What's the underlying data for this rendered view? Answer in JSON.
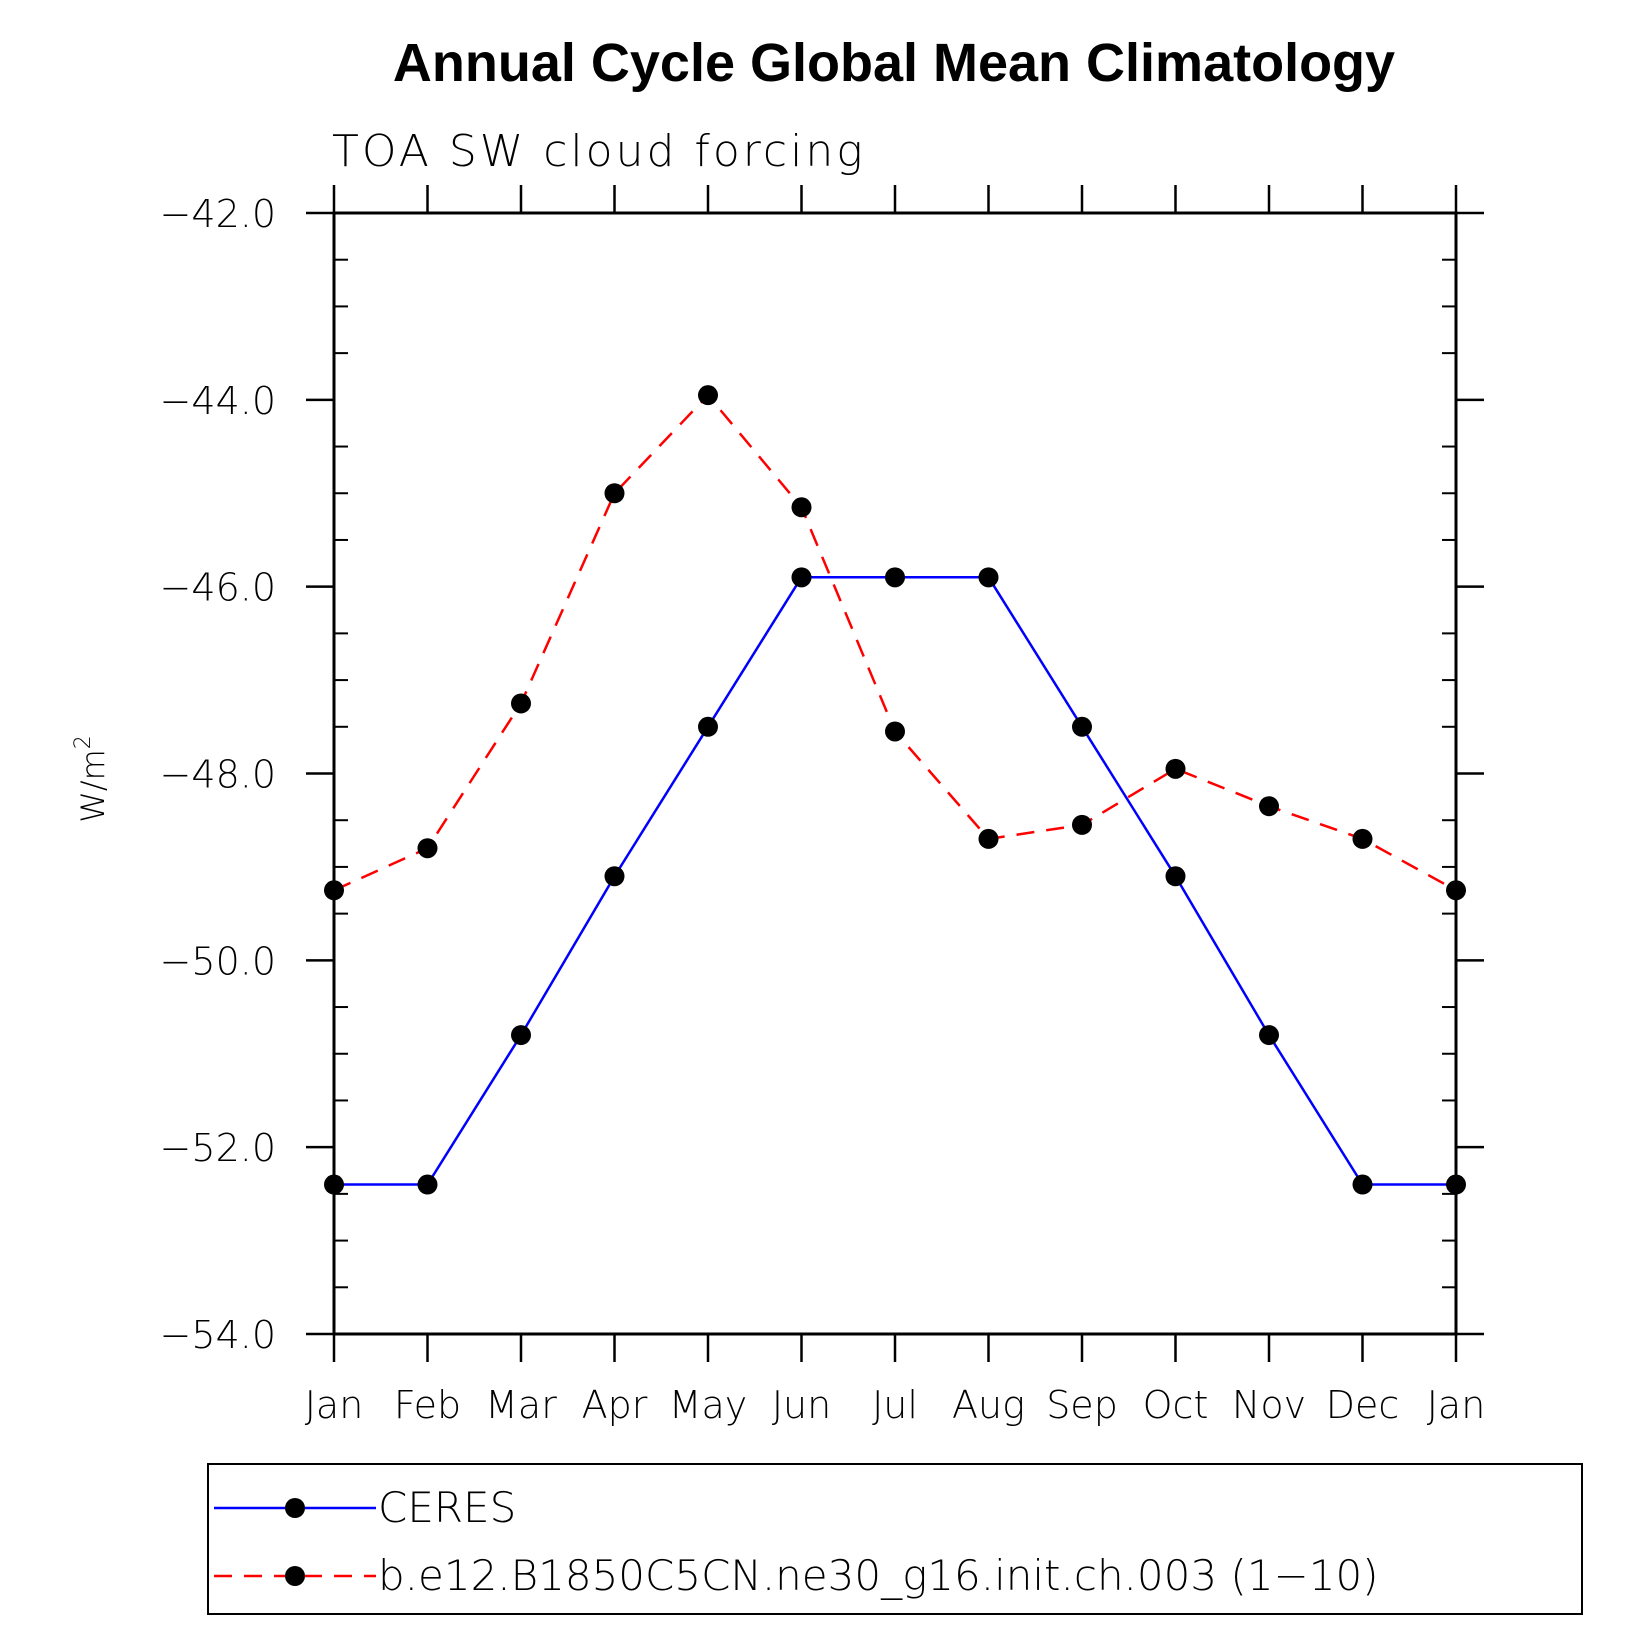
{
  "chart_data": {
    "type": "line",
    "title": "Annual Cycle Global Mean Climatology",
    "subtitle": "TOA SW cloud forcing",
    "ylabel": "W/m",
    "ylabel_superscript": "2",
    "ylim": [
      -54.0,
      -42.0
    ],
    "yticks": [
      -42.0,
      -44.0,
      -46.0,
      -48.0,
      -50.0,
      -52.0,
      -54.0
    ],
    "ytick_labels": [
      "−42.0",
      "−44.0",
      "−46.0",
      "−48.0",
      "−50.0",
      "−52.0",
      "−54.0"
    ],
    "categories": [
      "Jan",
      "Feb",
      "Mar",
      "Apr",
      "May",
      "Jun",
      "Jul",
      "Aug",
      "Sep",
      "Oct",
      "Nov",
      "Dec",
      "Jan"
    ],
    "series": [
      {
        "name": "CERES",
        "color": "#0000ff",
        "dash": "solid",
        "values": [
          -52.4,
          -52.4,
          -50.8,
          -49.1,
          -47.5,
          -45.9,
          -45.9,
          -45.9,
          -47.5,
          -49.1,
          -50.8,
          -52.4,
          -52.4
        ]
      },
      {
        "name": "b.e12.B1850C5CN.ne30_g16.init.ch.003 (1−10)",
        "color": "#ff0000",
        "dash": "dashed",
        "values": [
          -49.25,
          -48.8,
          -47.25,
          -45.0,
          -43.95,
          -45.15,
          -47.55,
          -48.7,
          -48.55,
          -47.95,
          -48.35,
          -48.7,
          -49.25
        ]
      }
    ],
    "legend_position": "bottom",
    "grid": false
  }
}
